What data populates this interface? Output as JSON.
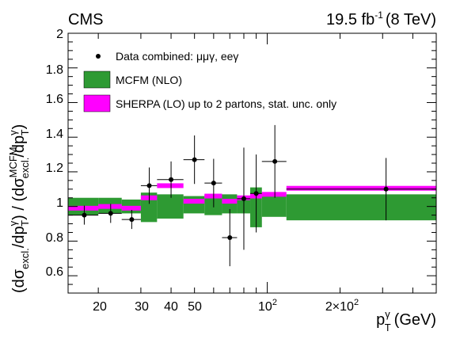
{
  "header": {
    "experiment": "CMS",
    "lumi_sup": "-1",
    "lumi_prefix": "19.5 fb",
    "energy": "(8 TeV)"
  },
  "chart_data": {
    "type": "scatter",
    "xscale": "log",
    "xlim": [
      15,
      500
    ],
    "ylim": [
      0.5,
      2.0
    ],
    "xlabel": "p_T^γ (GeV)",
    "ylabel": "(dσ_excl./dp_T^γ) / (dσ_excl.^MCFM/dp_T^γ)",
    "x_tick_labels": [
      "20",
      "30",
      "40",
      "50",
      "10²",
      "2×10²"
    ],
    "y_tick_labels": [
      "0.6",
      "0.8",
      "1",
      "1.2",
      "1.4",
      "1.6",
      "1.8",
      "2"
    ],
    "legend": {
      "position": "top-left",
      "entries": [
        "Data combined: μμγ, eeγ",
        "MCFM (NLO)",
        "SHERPA (LO) up to 2 partons, stat. unc. only"
      ]
    },
    "colors": {
      "data": "#000000",
      "mcfm": "#2e9a33",
      "sherpa": "#ff00ff"
    },
    "bins": [
      {
        "lo": 15,
        "hi": 20,
        "mcfm_lo": 0.95,
        "mcfm_hi": 1.05,
        "sherpa": 0.99
      },
      {
        "lo": 20,
        "hi": 25,
        "mcfm_lo": 0.96,
        "mcfm_hi": 1.05,
        "sherpa": 1.0
      },
      {
        "lo": 25,
        "hi": 30,
        "mcfm_lo": 0.96,
        "mcfm_hi": 1.04,
        "sherpa": 0.99
      },
      {
        "lo": 30,
        "hi": 35,
        "mcfm_lo": 0.91,
        "mcfm_hi": 1.08,
        "sherpa": 1.05
      },
      {
        "lo": 35,
        "hi": 45,
        "mcfm_lo": 0.93,
        "mcfm_hi": 1.07,
        "sherpa": 1.12
      },
      {
        "lo": 45,
        "hi": 55,
        "mcfm_lo": 0.96,
        "mcfm_hi": 1.06,
        "sherpa": 1.03
      },
      {
        "lo": 55,
        "hi": 65,
        "mcfm_lo": 0.95,
        "mcfm_hi": 1.07,
        "sherpa": 1.06
      },
      {
        "lo": 65,
        "hi": 75,
        "mcfm_lo": 0.96,
        "mcfm_hi": 1.07,
        "sherpa": 1.03
      },
      {
        "lo": 75,
        "hi": 85,
        "mcfm_lo": 0.96,
        "mcfm_hi": 1.06,
        "sherpa": 1.05
      },
      {
        "lo": 85,
        "hi": 95,
        "mcfm_lo": 0.88,
        "mcfm_hi": 1.11,
        "sherpa": 1.06
      },
      {
        "lo": 95,
        "hi": 120,
        "mcfm_lo": 0.94,
        "mcfm_hi": 1.07,
        "sherpa": 1.07
      },
      {
        "lo": 120,
        "hi": 500,
        "mcfm_lo": 0.92,
        "mcfm_hi": 1.07,
        "sherpa": 1.105
      }
    ],
    "data_points": [
      {
        "x": 17.5,
        "y": 0.95,
        "xerr_lo": 2.5,
        "xerr_hi": 2.5,
        "yerr": 0.055
      },
      {
        "x": 22.5,
        "y": 0.96,
        "xerr_lo": 2.5,
        "xerr_hi": 2.5,
        "yerr": 0.055
      },
      {
        "x": 27.5,
        "y": 0.925,
        "xerr_lo": 2.5,
        "xerr_hi": 2.5,
        "yerr": 0.055
      },
      {
        "x": 32.5,
        "y": 1.12,
        "xerr_lo": 2.5,
        "xerr_hi": 2.5,
        "yerr": 0.105
      },
      {
        "x": 40,
        "y": 1.155,
        "xerr_lo": 5,
        "xerr_hi": 5,
        "yerr": 0.105
      },
      {
        "x": 50,
        "y": 1.27,
        "xerr_lo": 5,
        "xerr_hi": 5,
        "yerr": 0.14
      },
      {
        "x": 60,
        "y": 1.135,
        "xerr_lo": 5,
        "xerr_hi": 5,
        "yerr": 0.14
      },
      {
        "x": 70,
        "y": 0.82,
        "xerr_lo": 5,
        "xerr_hi": 5,
        "yerr": 0.165
      },
      {
        "x": 80,
        "y": 1.045,
        "xerr_lo": 5,
        "xerr_hi": 5,
        "yerr": 0.295
      },
      {
        "x": 90,
        "y": 1.075,
        "xerr_lo": 5,
        "xerr_hi": 5,
        "yerr": 0.225
      },
      {
        "x": 107.5,
        "y": 1.26,
        "xerr_lo": 12.5,
        "xerr_hi": 12.5,
        "yerr": 0.21
      },
      {
        "x": 310,
        "y": 1.1,
        "xerr_lo": 190,
        "xerr_hi": 190,
        "yerr": 0.18
      }
    ]
  }
}
